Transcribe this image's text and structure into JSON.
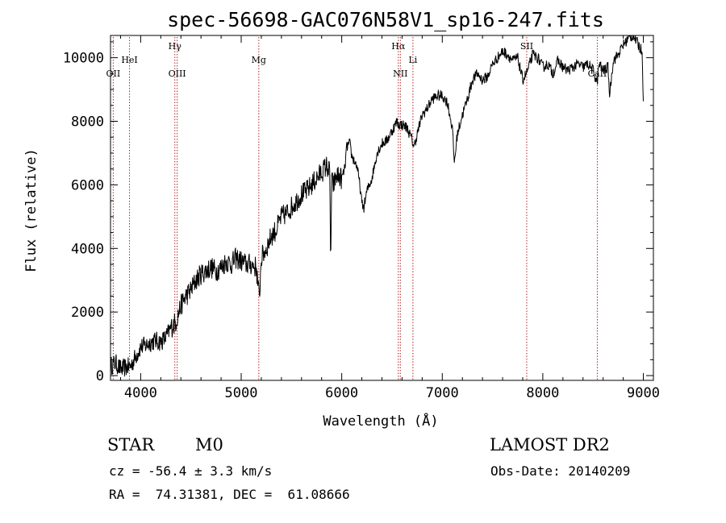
{
  "chart_data": {
    "type": "line",
    "title": "spec-56698-GAC076N58V1_sp16-247.fits",
    "xlabel": "Wavelength (Å)",
    "ylabel": "Flux (relative)",
    "xlim": [
      3700,
      9100
    ],
    "ylim": [
      -150,
      10700
    ],
    "xticks": [
      4000,
      5000,
      6000,
      7000,
      8000,
      9000
    ],
    "yticks": [
      0,
      2000,
      4000,
      6000,
      8000,
      10000
    ],
    "grid": false,
    "line_color": "#000000",
    "marker_color": "#b22222",
    "spectral_lines": [
      {
        "label": "OII",
        "x": 3727,
        "row": "lower"
      },
      {
        "label": "HeI",
        "x": 3889,
        "row": "upper"
      },
      {
        "label": "Hγ",
        "x": 4340,
        "row": "top"
      },
      {
        "label": "OIII",
        "x": 4363,
        "row": "lower"
      },
      {
        "label": "Mg",
        "x": 5175,
        "row": "upper"
      },
      {
        "label": "Hα",
        "x": 6563,
        "row": "top"
      },
      {
        "label": "NII",
        "x": 6583,
        "row": "lower"
      },
      {
        "label": "Li",
        "x": 6708,
        "row": "upper"
      },
      {
        "label": "SII",
        "x": 7840,
        "row": "top"
      },
      {
        "label": "CaII",
        "x": 8542,
        "row": "lower"
      }
    ],
    "series": [
      {
        "x": [
          3700,
          3750,
          3800,
          3850,
          3900,
          3950,
          4000,
          4050,
          4100,
          4150,
          4200,
          4250,
          4300,
          4350,
          4400,
          4450,
          4500,
          4550,
          4600,
          4650,
          4700,
          4750,
          4800,
          4850,
          4900,
          4950,
          5000,
          5050,
          5100,
          5150,
          5180,
          5200,
          5250,
          5300,
          5350,
          5400,
          5450,
          5500,
          5550,
          5600,
          5650,
          5700,
          5750,
          5800,
          5850,
          5880,
          5890,
          5900,
          5920,
          5950,
          6000,
          6030,
          6050,
          6080,
          6100,
          6150,
          6180,
          6200,
          6220,
          6250,
          6300,
          6350,
          6400,
          6450,
          6500,
          6550,
          6563,
          6600,
          6650,
          6700,
          6720,
          6750,
          6800,
          6850,
          6900,
          6950,
          7000,
          7050,
          7100,
          7120,
          7150,
          7200,
          7250,
          7300,
          7350,
          7400,
          7450,
          7500,
          7550,
          7600,
          7650,
          7700,
          7750,
          7800,
          7850,
          7900,
          7950,
          8000,
          8050,
          8100,
          8150,
          8200,
          8250,
          8300,
          8350,
          8400,
          8450,
          8500,
          8540,
          8560,
          8600,
          8650,
          8662,
          8700,
          8750,
          8800,
          8850,
          8900,
          8950,
          8990,
          9000
        ],
        "y": [
          300,
          400,
          200,
          250,
          300,
          600,
          900,
          950,
          1050,
          1100,
          1050,
          1200,
          1500,
          1700,
          2200,
          2500,
          2700,
          3000,
          3200,
          3300,
          3400,
          3300,
          3400,
          3600,
          3500,
          3700,
          3600,
          3500,
          3500,
          3400,
          2400,
          3700,
          4000,
          4400,
          4600,
          5000,
          5100,
          5300,
          5500,
          5700,
          5800,
          6000,
          6200,
          6400,
          6600,
          6400,
          3500,
          6100,
          6000,
          6300,
          6200,
          6500,
          7200,
          7300,
          6900,
          6600,
          6000,
          5400,
          5300,
          5800,
          6200,
          7000,
          7300,
          7400,
          7700,
          8000,
          7900,
          7900,
          7800,
          7400,
          7200,
          7600,
          8200,
          8400,
          8700,
          8800,
          8800,
          8600,
          7800,
          6700,
          7600,
          8200,
          8700,
          9300,
          9500,
          9300,
          9400,
          9800,
          10000,
          10200,
          10100,
          9900,
          10000,
          9300,
          9600,
          10100,
          10000,
          9700,
          9800,
          9500,
          9900,
          9700,
          9600,
          9700,
          9800,
          9700,
          9800,
          9600,
          9200,
          9800,
          9600,
          9700,
          8800,
          9900,
          10100,
          10400,
          10600,
          10700,
          10400,
          10200,
          8500
        ]
      }
    ]
  },
  "info": {
    "object_type": "STAR",
    "subclass": "M0",
    "survey": "LAMOST DR2",
    "cz_line": "cz = -56.4 ± 3.3 km/s",
    "obs_date_line": "Obs-Date: 20140209",
    "radec_line": "RA =  74.31381, DEC =  61.08666"
  }
}
